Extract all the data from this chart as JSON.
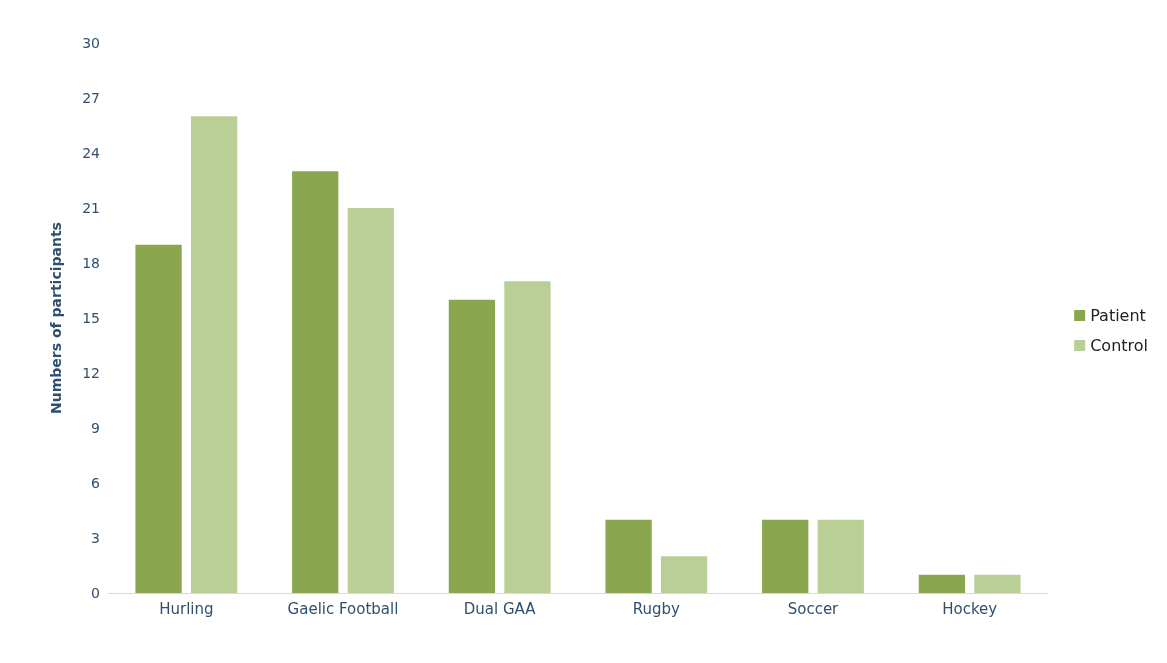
{
  "chart_data": {
    "type": "bar",
    "ylabel": "Numbers of participants",
    "categories": [
      "Hurling",
      "Gaelic Football",
      "Dual GAA",
      "Rugby",
      "Soccer",
      "Hockey"
    ],
    "series": [
      {
        "name": "Patient",
        "color": "#8aa64e",
        "values": [
          19,
          23,
          16,
          4,
          4,
          1
        ]
      },
      {
        "name": "Control",
        "color": "#b9cf96",
        "values": [
          26,
          21,
          17,
          2,
          4,
          1
        ]
      }
    ],
    "ylim": [
      0,
      30
    ],
    "yticks": [
      0,
      3,
      6,
      9,
      12,
      15,
      18,
      21,
      24,
      27,
      30
    ],
    "grid": false,
    "legend": "right"
  }
}
